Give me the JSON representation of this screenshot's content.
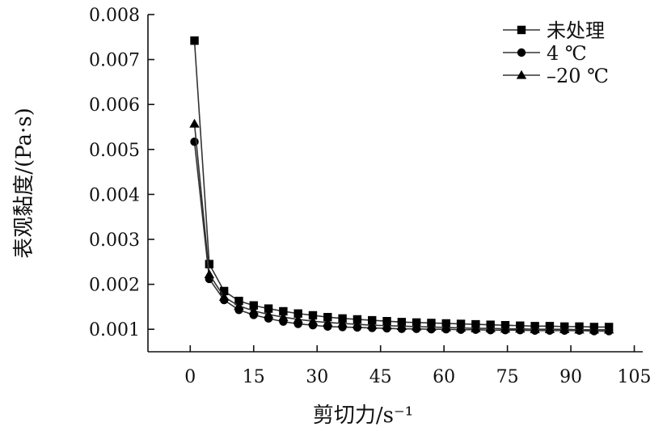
{
  "chart_data": {
    "type": "line",
    "xlabel": "剪切力/s⁻¹",
    "ylabel": "表观黏度/(Pa·s)",
    "xlim": [
      -10,
      107
    ],
    "ylim": [
      0.0005,
      0.008
    ],
    "xticks": [
      0,
      15,
      30,
      45,
      60,
      75,
      90,
      105
    ],
    "yticks": [
      0.001,
      0.002,
      0.003,
      0.004,
      0.005,
      0.006,
      0.007,
      0.008
    ],
    "xtick_labels": [
      "0",
      "15",
      "30",
      "45",
      "60",
      "75",
      "90",
      "105"
    ],
    "ytick_labels": [
      "0.001",
      "0.002",
      "0.003",
      "0.004",
      "0.005",
      "0.006",
      "0.007",
      "0.008"
    ],
    "grid": false,
    "legend_position": "top-right",
    "x": [
      1,
      4.5,
      8,
      11.5,
      15,
      18.5,
      22,
      25.5,
      29,
      32.5,
      36,
      39.5,
      43,
      46.5,
      50,
      53.5,
      57,
      60.5,
      64,
      67.5,
      71,
      74.5,
      78,
      81.5,
      85,
      88.5,
      92,
      95.5,
      99
    ],
    "series": [
      {
        "name": "未处理",
        "marker": "square",
        "values": [
          0.00742,
          0.00245,
          0.00185,
          0.00163,
          0.00153,
          0.00146,
          0.0014,
          0.00135,
          0.00131,
          0.00127,
          0.00124,
          0.00122,
          0.0012,
          0.00118,
          0.00116,
          0.00115,
          0.00114,
          0.00113,
          0.00112,
          0.00111,
          0.0011,
          0.00109,
          0.00108,
          0.00107,
          0.00107,
          0.00106,
          0.00106,
          0.00105,
          0.00105
        ]
      },
      {
        "name": "4 ℃",
        "marker": "circle",
        "values": [
          0.00517,
          0.00212,
          0.00165,
          0.00143,
          0.00132,
          0.00124,
          0.00117,
          0.00112,
          0.00109,
          0.00106,
          0.00105,
          0.00104,
          0.00103,
          0.00102,
          0.00101,
          0.00101,
          0.001,
          0.001,
          0.00099,
          0.00099,
          0.00098,
          0.00098,
          0.00098,
          0.00097,
          0.00097,
          0.00097,
          0.00097,
          0.00096,
          0.00096
        ]
      },
      {
        "name": "–20 ℃",
        "marker": "triangle",
        "values": [
          0.00557,
          0.00222,
          0.00172,
          0.00152,
          0.00141,
          0.00133,
          0.00127,
          0.00122,
          0.00118,
          0.00115,
          0.00113,
          0.00111,
          0.00109,
          0.00108,
          0.00107,
          0.00106,
          0.00105,
          0.00104,
          0.00103,
          0.00102,
          0.00102,
          0.00101,
          0.00101,
          0.001,
          0.001,
          0.001,
          0.00099,
          0.00099,
          0.00099
        ]
      }
    ]
  }
}
